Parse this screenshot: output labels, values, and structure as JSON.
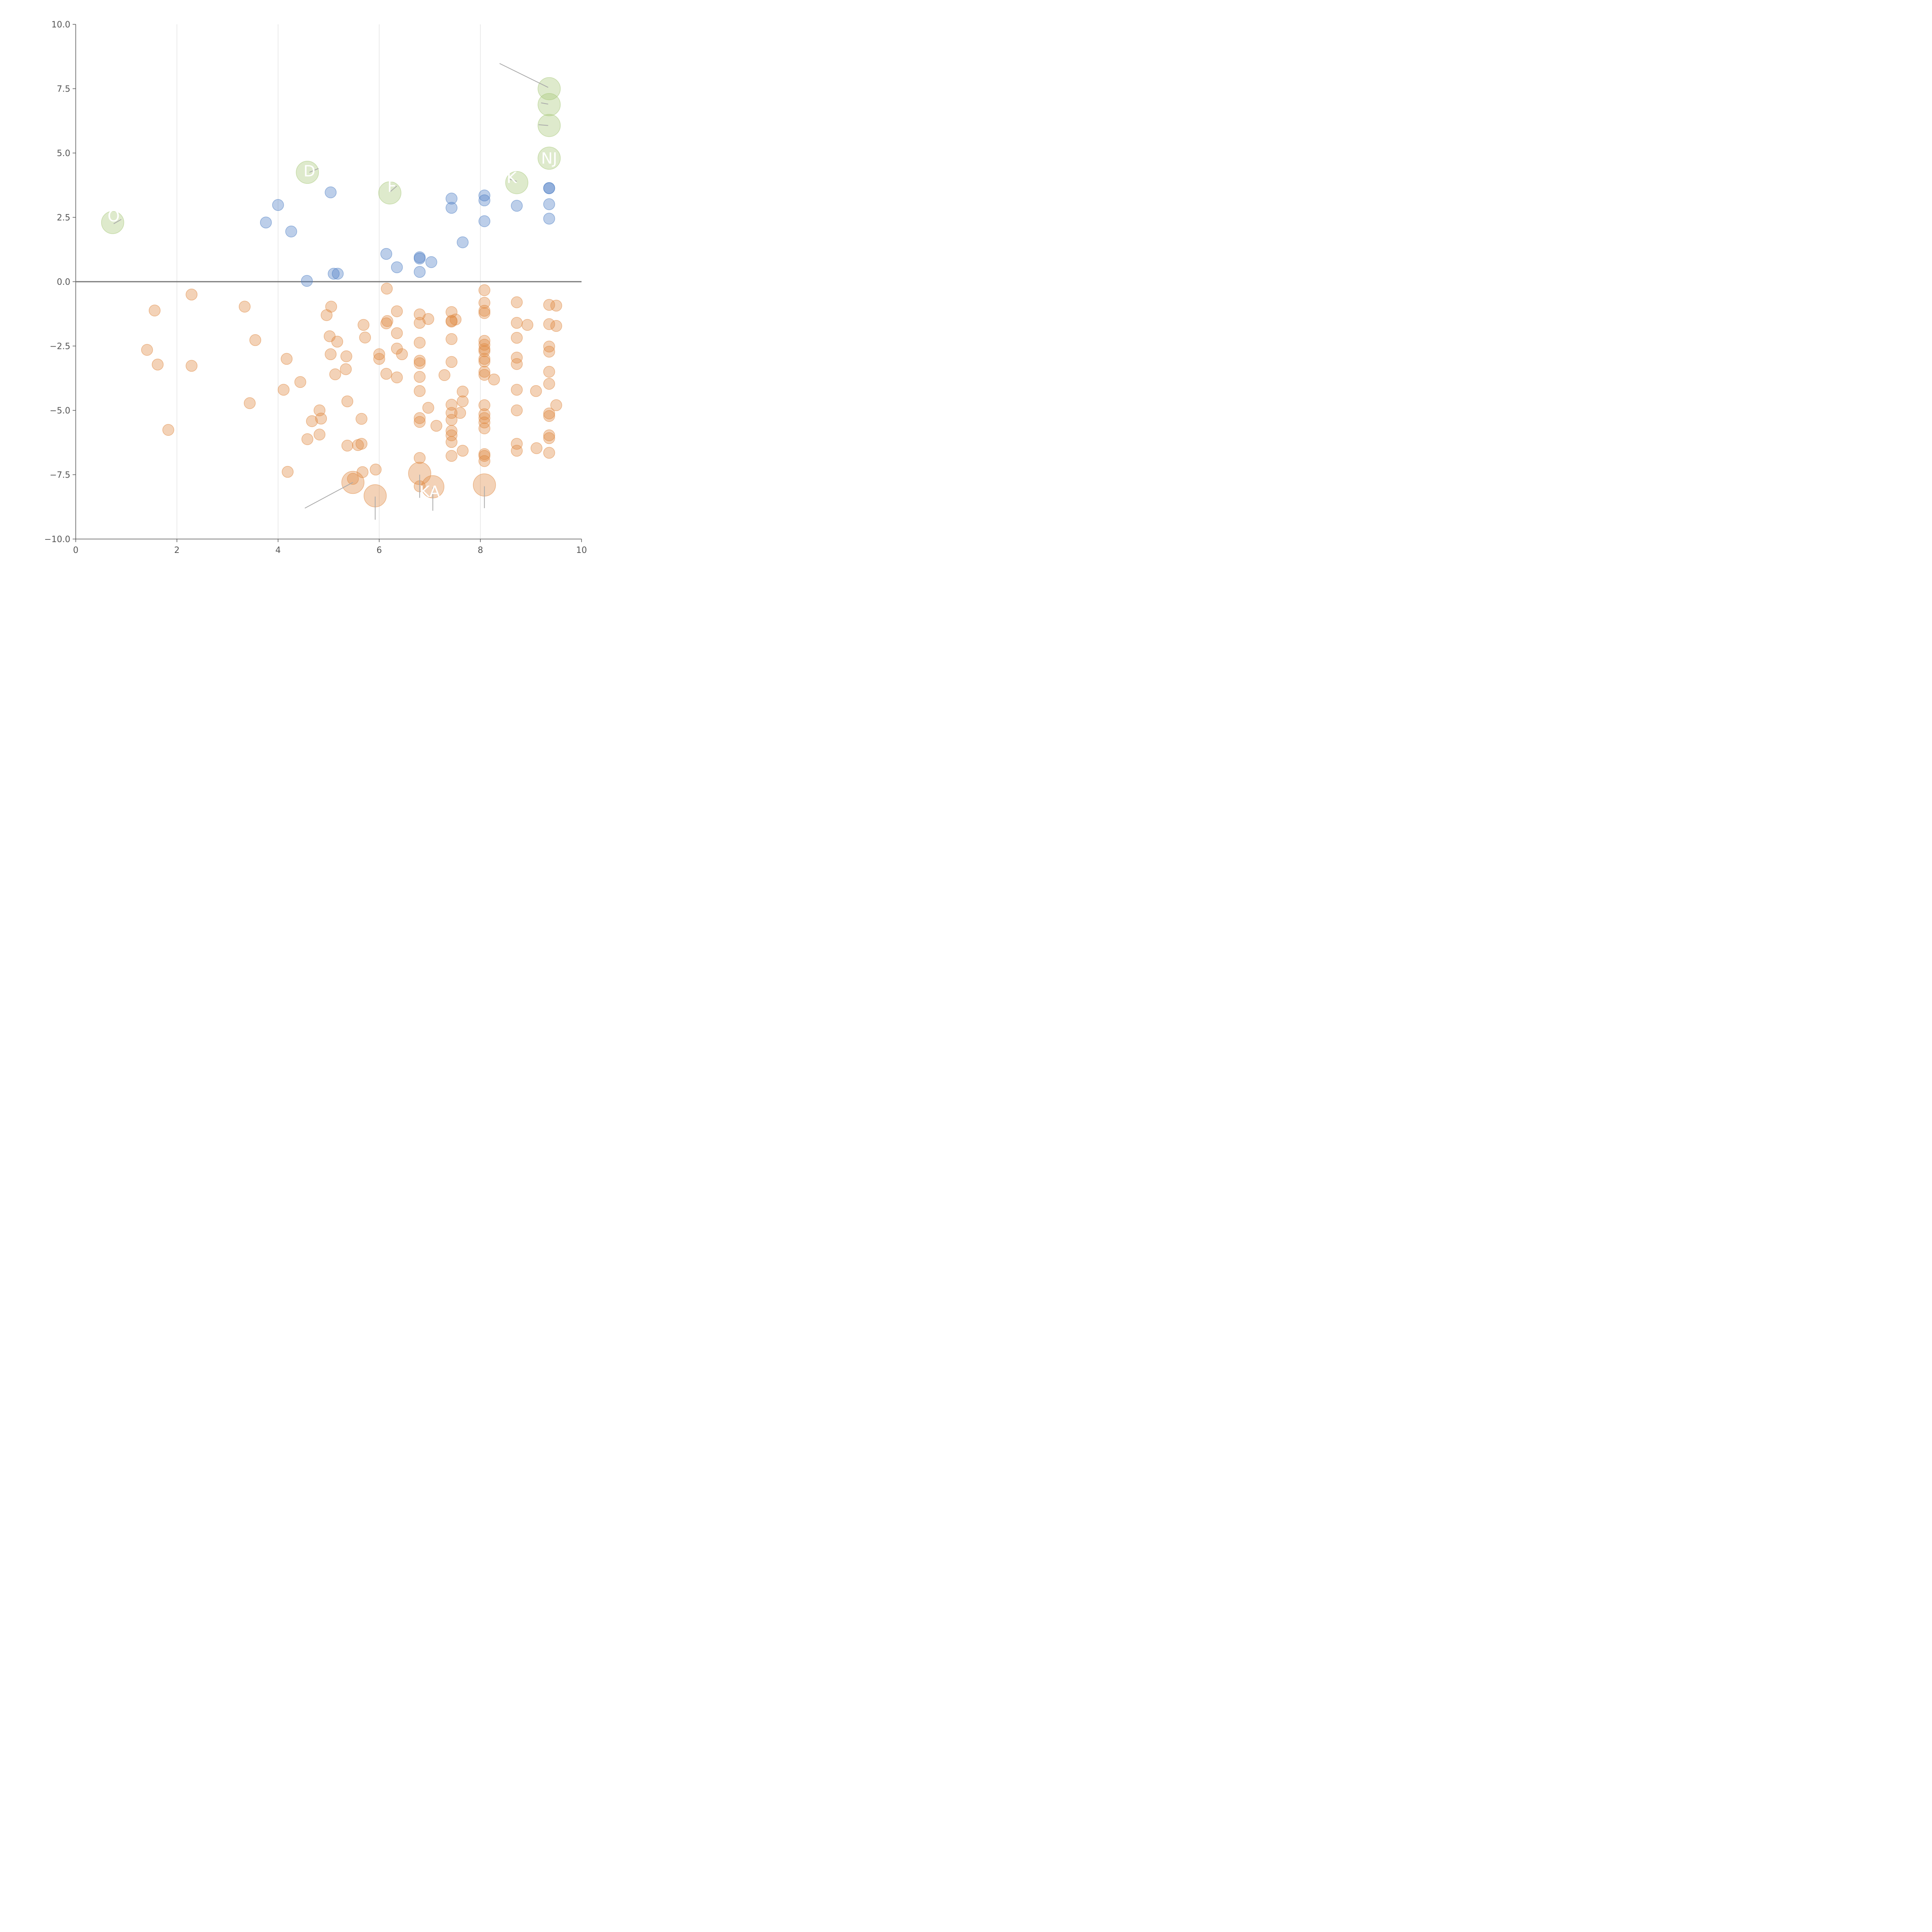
{
  "chart_data": {
    "type": "scatter",
    "title": "",
    "xlabel": "",
    "ylabel": "",
    "xlim": [
      0,
      10
    ],
    "ylim": [
      -10,
      10
    ],
    "xticks": [
      0,
      2,
      4,
      6,
      8,
      10
    ],
    "yticks": [
      -10,
      -7.5,
      -5,
      -2.5,
      0,
      2.5,
      5,
      7.5,
      10
    ],
    "xtick_labels": [
      "0",
      "2",
      "4",
      "6",
      "8",
      "10"
    ],
    "ytick_labels": [
      "−10.0",
      "−7.5",
      "−5.0",
      "−2.5",
      "0.0",
      "2.5",
      "5.0",
      "7.5",
      "10.0"
    ],
    "grid": "vertical",
    "reference_line_y": 0,
    "series": [
      {
        "color": "#4f7fc4",
        "size": "small",
        "points": [
          [
            3.76,
            2.3
          ],
          [
            4.0,
            2.98
          ],
          [
            4.26,
            1.95
          ],
          [
            4.57,
            0.03
          ],
          [
            5.04,
            3.47
          ],
          [
            5.1,
            0.31
          ],
          [
            5.18,
            0.31
          ],
          [
            6.14,
            1.08
          ],
          [
            6.35,
            0.56
          ],
          [
            6.8,
            0.95
          ],
          [
            6.8,
            0.9
          ],
          [
            6.8,
            0.38
          ],
          [
            7.03,
            0.76
          ],
          [
            7.43,
            3.23
          ],
          [
            7.43,
            2.87
          ],
          [
            7.65,
            1.53
          ],
          [
            8.08,
            3.35
          ],
          [
            8.08,
            3.16
          ],
          [
            8.08,
            2.35
          ],
          [
            8.72,
            2.95
          ],
          [
            9.36,
            3.64
          ],
          [
            9.36,
            3.63
          ],
          [
            9.36,
            3.01
          ],
          [
            9.36,
            2.45
          ]
        ]
      },
      {
        "color": "#e08a43",
        "size": "small",
        "points": [
          [
            1.41,
            -2.65
          ],
          [
            1.56,
            -1.12
          ],
          [
            1.62,
            -3.22
          ],
          [
            1.83,
            -5.76
          ],
          [
            2.29,
            -0.5
          ],
          [
            2.29,
            -3.27
          ],
          [
            3.34,
            -0.97
          ],
          [
            3.44,
            -4.72
          ],
          [
            3.55,
            -2.27
          ],
          [
            4.11,
            -4.2
          ],
          [
            4.17,
            -3.0
          ],
          [
            4.19,
            -7.39
          ],
          [
            4.44,
            -3.9
          ],
          [
            4.58,
            -6.12
          ],
          [
            4.67,
            -5.42
          ],
          [
            4.82,
            -5.0
          ],
          [
            4.82,
            -5.94
          ],
          [
            4.85,
            -5.32
          ],
          [
            4.96,
            -1.3
          ],
          [
            5.02,
            -2.12
          ],
          [
            5.04,
            -2.82
          ],
          [
            5.05,
            -0.97
          ],
          [
            5.13,
            -3.6
          ],
          [
            5.17,
            -2.33
          ],
          [
            5.34,
            -3.4
          ],
          [
            5.35,
            -2.9
          ],
          [
            5.37,
            -4.65
          ],
          [
            5.37,
            -6.37
          ],
          [
            5.48,
            -7.66
          ],
          [
            5.58,
            -6.35
          ],
          [
            5.65,
            -6.3
          ],
          [
            5.65,
            -5.33
          ],
          [
            5.67,
            -7.4
          ],
          [
            5.69,
            -1.68
          ],
          [
            5.72,
            -2.17
          ],
          [
            5.93,
            -7.3
          ],
          [
            6.0,
            -2.82
          ],
          [
            6.0,
            -3.0
          ],
          [
            6.14,
            -1.62
          ],
          [
            6.14,
            -3.58
          ],
          [
            6.15,
            -0.27
          ],
          [
            6.16,
            -1.53
          ],
          [
            6.35,
            -1.15
          ],
          [
            6.35,
            -2.0
          ],
          [
            6.35,
            -2.6
          ],
          [
            6.35,
            -3.72
          ],
          [
            6.45,
            -2.82
          ],
          [
            6.8,
            -1.27
          ],
          [
            6.8,
            -1.6
          ],
          [
            6.8,
            -2.37
          ],
          [
            6.8,
            -3.07
          ],
          [
            6.8,
            -3.17
          ],
          [
            6.8,
            -3.7
          ],
          [
            6.8,
            -4.25
          ],
          [
            6.8,
            -5.3
          ],
          [
            6.8,
            -5.45
          ],
          [
            6.8,
            -6.85
          ],
          [
            6.8,
            -7.95
          ],
          [
            6.97,
            -1.45
          ],
          [
            6.97,
            -4.9
          ],
          [
            7.13,
            -5.6
          ],
          [
            7.29,
            -3.63
          ],
          [
            7.43,
            -1.18
          ],
          [
            7.43,
            -1.52
          ],
          [
            7.43,
            -1.55
          ],
          [
            7.43,
            -2.23
          ],
          [
            7.43,
            -3.12
          ],
          [
            7.43,
            -4.78
          ],
          [
            7.43,
            -5.1
          ],
          [
            7.43,
            -5.37
          ],
          [
            7.43,
            -5.8
          ],
          [
            7.43,
            -5.97
          ],
          [
            7.43,
            -6.23
          ],
          [
            7.43,
            -6.77
          ],
          [
            7.51,
            -1.47
          ],
          [
            7.6,
            -5.1
          ],
          [
            7.65,
            -4.27
          ],
          [
            7.65,
            -4.65
          ],
          [
            7.65,
            -6.57
          ],
          [
            8.08,
            -0.33
          ],
          [
            8.08,
            -0.82
          ],
          [
            8.08,
            -1.13
          ],
          [
            8.08,
            -1.22
          ],
          [
            8.08,
            -2.3
          ],
          [
            8.08,
            -2.45
          ],
          [
            8.08,
            -2.62
          ],
          [
            8.08,
            -2.7
          ],
          [
            8.08,
            -3.0
          ],
          [
            8.08,
            -3.1
          ],
          [
            8.08,
            -3.5
          ],
          [
            8.08,
            -3.62
          ],
          [
            8.08,
            -4.8
          ],
          [
            8.08,
            -5.15
          ],
          [
            8.08,
            -5.3
          ],
          [
            8.08,
            -5.47
          ],
          [
            8.08,
            -5.7
          ],
          [
            8.08,
            -6.7
          ],
          [
            8.08,
            -6.77
          ],
          [
            8.08,
            -6.97
          ],
          [
            8.27,
            -3.8
          ],
          [
            8.72,
            -0.8
          ],
          [
            8.72,
            -1.6
          ],
          [
            8.72,
            -2.18
          ],
          [
            8.72,
            -2.95
          ],
          [
            8.72,
            -3.2
          ],
          [
            8.72,
            -4.2
          ],
          [
            8.72,
            -5.0
          ],
          [
            8.72,
            -6.3
          ],
          [
            8.72,
            -6.57
          ],
          [
            8.93,
            -1.68
          ],
          [
            9.1,
            -4.25
          ],
          [
            9.11,
            -6.47
          ],
          [
            9.36,
            -0.9
          ],
          [
            9.36,
            -1.65
          ],
          [
            9.36,
            -2.52
          ],
          [
            9.36,
            -2.72
          ],
          [
            9.36,
            -3.5
          ],
          [
            9.36,
            -3.97
          ],
          [
            9.36,
            -5.12
          ],
          [
            9.36,
            -5.22
          ],
          [
            9.36,
            -5.97
          ],
          [
            9.36,
            -6.08
          ],
          [
            9.36,
            -6.65
          ],
          [
            9.5,
            -0.93
          ],
          [
            9.5,
            -1.72
          ],
          [
            9.5,
            -4.8
          ]
        ]
      },
      {
        "color": "#a8c97a",
        "size": "large",
        "points": [
          [
            0.73,
            2.3
          ],
          [
            4.58,
            4.25
          ],
          [
            6.21,
            3.45
          ],
          [
            8.72,
            3.85
          ],
          [
            9.36,
            7.5
          ],
          [
            9.36,
            6.88
          ],
          [
            9.36,
            6.07
          ],
          [
            9.36,
            4.8
          ]
        ]
      },
      {
        "color": "#e08a43",
        "size": "large",
        "points": [
          [
            5.48,
            -7.8
          ],
          [
            5.92,
            -8.32
          ],
          [
            6.8,
            -7.45
          ],
          [
            7.06,
            -7.97
          ],
          [
            8.08,
            -7.9
          ]
        ]
      }
    ],
    "annotations": [
      {
        "text": "O",
        "x": 0.75,
        "y": 2.55,
        "line": [
          [
            0.75,
            2.25
          ],
          [
            0.9,
            2.42
          ]
        ]
      },
      {
        "text": "D",
        "x": 4.62,
        "y": 4.3,
        "line": [
          [
            4.62,
            4.25
          ],
          [
            4.8,
            4.4
          ]
        ]
      },
      {
        "text": "F",
        "x": 6.25,
        "y": 3.7,
        "line": [
          [
            6.22,
            3.5
          ],
          [
            6.35,
            3.72
          ]
        ]
      },
      {
        "text": "K",
        "x": 8.62,
        "y": 4.05,
        "line": [
          [
            8.72,
            3.9
          ],
          [
            8.55,
            4.0
          ]
        ]
      },
      {
        "text": "NJ",
        "x": 9.36,
        "y": 4.8,
        "line": []
      },
      {
        "text": "",
        "x": 9.36,
        "y": 7.5,
        "line": [
          [
            9.34,
            7.55
          ],
          [
            8.38,
            8.48
          ]
        ]
      },
      {
        "text": "",
        "x": 9.36,
        "y": 6.88,
        "line": [
          [
            9.34,
            6.9
          ],
          [
            9.2,
            6.95
          ]
        ]
      },
      {
        "text": "",
        "x": 9.36,
        "y": 6.07,
        "line": [
          [
            9.34,
            6.07
          ],
          [
            9.15,
            6.1
          ]
        ]
      },
      {
        "text": "KA",
        "x": 7.0,
        "y": -8.15,
        "line": [
          [
            7.06,
            -8.0
          ],
          [
            7.06,
            -8.9
          ]
        ]
      },
      {
        "text": "",
        "x": 6.8,
        "y": -7.45,
        "line": [
          [
            6.8,
            -7.5
          ],
          [
            6.8,
            -8.4
          ]
        ]
      },
      {
        "text": "",
        "x": 8.08,
        "y": -7.9,
        "line": [
          [
            8.08,
            -7.95
          ],
          [
            8.08,
            -8.8
          ]
        ]
      },
      {
        "text": "",
        "x": 5.92,
        "y": -8.32,
        "line": [
          [
            5.92,
            -8.35
          ],
          [
            5.92,
            -9.25
          ]
        ]
      },
      {
        "text": "",
        "x": 5.48,
        "y": -7.8,
        "line": [
          [
            5.48,
            -7.8
          ],
          [
            4.53,
            -8.8
          ]
        ]
      }
    ],
    "colors": {
      "axis": "#555555",
      "grid": "#dddddd",
      "zero_line": "#777777",
      "leader": "#aaaaaa"
    }
  }
}
